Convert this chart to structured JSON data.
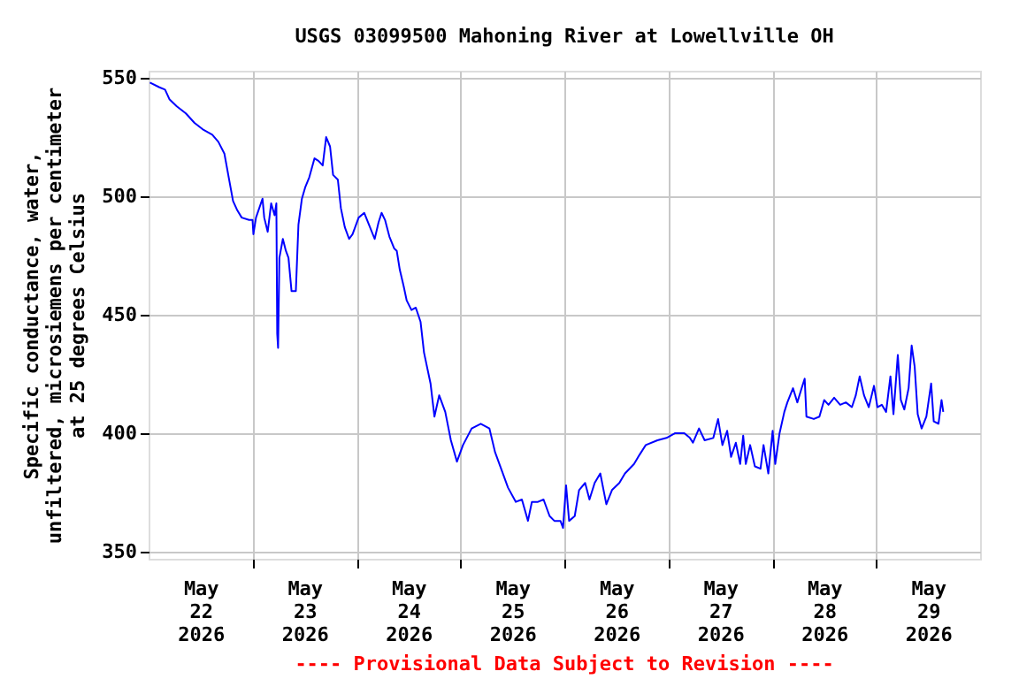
{
  "chart_data": {
    "type": "line",
    "title": "USGS 03099500 Mahoning River at Lowellville OH",
    "ylabel": "Specific conductance, water,\nunfiltered, microsiemens per centimeter\nat 25 degrees Celsius",
    "annotations": [
      "---- Provisional Data Subject to Revision ----"
    ],
    "x": [
      "2026-05-22T00:18",
      "2026-05-22T02:30",
      "2026-05-22T03:48",
      "2026-05-22T04:48",
      "2026-05-22T06:30",
      "2026-05-22T08:36",
      "2026-05-22T10:36",
      "2026-05-22T12:42",
      "2026-05-22T14:42",
      "2026-05-22T16:06",
      "2026-05-22T17:30",
      "2026-05-22T18:30",
      "2026-05-22T19:30",
      "2026-05-22T20:30",
      "2026-05-22T21:30",
      "2026-05-22T23:12",
      "2026-05-23T00:00",
      "2026-05-23T00:12",
      "2026-05-23T00:48",
      "2026-05-23T02:18",
      "2026-05-23T02:42",
      "2026-05-23T03:30",
      "2026-05-23T04:18",
      "2026-05-23T05:06",
      "2026-05-23T05:30",
      "2026-05-23T05:42",
      "2026-05-23T05:54",
      "2026-05-23T06:12",
      "2026-05-23T07:00",
      "2026-05-23T07:42",
      "2026-05-23T08:18",
      "2026-05-23T09:00",
      "2026-05-23T10:00",
      "2026-05-23T10:36",
      "2026-05-23T11:24",
      "2026-05-23T12:12",
      "2026-05-23T13:06",
      "2026-05-23T14:18",
      "2026-05-23T15:12",
      "2026-05-23T16:12",
      "2026-05-23T17:00",
      "2026-05-23T17:54",
      "2026-05-23T18:36",
      "2026-05-23T19:42",
      "2026-05-23T20:24",
      "2026-05-23T21:18",
      "2026-05-23T22:18",
      "2026-05-23T23:06",
      "2026-05-24T00:30",
      "2026-05-24T01:48",
      "2026-05-24T04:12",
      "2026-05-24T05:06",
      "2026-05-24T05:48",
      "2026-05-24T06:36",
      "2026-05-24T07:36",
      "2026-05-24T08:42",
      "2026-05-24T09:18",
      "2026-05-24T10:00",
      "2026-05-24T10:54",
      "2026-05-24T11:36",
      "2026-05-24T12:42",
      "2026-05-24T13:42",
      "2026-05-24T14:48",
      "2026-05-24T15:36",
      "2026-05-24T17:06",
      "2026-05-24T18:00",
      "2026-05-24T19:06",
      "2026-05-24T20:30",
      "2026-05-24T21:48",
      "2026-05-24T23:12",
      "2026-05-25T00:36",
      "2026-05-25T02:36",
      "2026-05-25T04:42",
      "2026-05-25T06:42",
      "2026-05-25T08:00",
      "2026-05-25T09:24",
      "2026-05-25T11:00",
      "2026-05-25T12:48",
      "2026-05-25T14:12",
      "2026-05-25T15:36",
      "2026-05-25T16:30",
      "2026-05-25T17:54",
      "2026-05-25T19:12",
      "2026-05-25T20:36",
      "2026-05-25T21:42",
      "2026-05-25T23:06",
      "2026-05-25T23:42",
      "2026-05-26T00:24",
      "2026-05-26T01:06",
      "2026-05-26T02:24",
      "2026-05-26T03:24",
      "2026-05-26T04:48",
      "2026-05-26T05:48",
      "2026-05-26T07:00",
      "2026-05-26T08:18",
      "2026-05-26T09:42",
      "2026-05-26T11:00",
      "2026-05-26T12:42",
      "2026-05-26T14:00",
      "2026-05-26T16:06",
      "2026-05-26T17:24",
      "2026-05-26T18:48",
      "2026-05-26T21:30",
      "2026-05-26T23:36",
      "2026-05-27T01:36",
      "2026-05-27T03:42",
      "2026-05-27T05:00",
      "2026-05-27T05:42",
      "2026-05-27T07:06",
      "2026-05-27T08:24",
      "2026-05-27T10:24",
      "2026-05-27T11:30",
      "2026-05-27T12:30",
      "2026-05-27T13:36",
      "2026-05-27T14:30",
      "2026-05-27T15:36",
      "2026-05-27T16:36",
      "2026-05-27T17:18",
      "2026-05-27T17:54",
      "2026-05-27T18:54",
      "2026-05-27T20:00",
      "2026-05-27T21:18",
      "2026-05-27T22:00",
      "2026-05-27T23:06",
      "2026-05-28T00:06",
      "2026-05-28T00:42",
      "2026-05-28T01:42",
      "2026-05-28T02:48",
      "2026-05-28T03:30",
      "2026-05-28T04:48",
      "2026-05-28T05:48",
      "2026-05-28T06:48",
      "2026-05-28T07:30",
      "2026-05-28T07:54",
      "2026-05-28T09:36",
      "2026-05-28T10:54",
      "2026-05-28T12:00",
      "2026-05-28T13:00",
      "2026-05-28T14:18",
      "2026-05-28T15:42",
      "2026-05-28T17:00",
      "2026-05-28T18:24",
      "2026-05-28T19:18",
      "2026-05-28T20:12",
      "2026-05-28T21:12",
      "2026-05-28T22:18",
      "2026-05-28T23:30",
      "2026-05-29T00:18",
      "2026-05-29T01:18",
      "2026-05-29T02:18",
      "2026-05-29T03:18",
      "2026-05-29T04:00",
      "2026-05-29T05:00",
      "2026-05-29T05:42",
      "2026-05-29T06:30",
      "2026-05-29T07:30",
      "2026-05-29T08:12",
      "2026-05-29T08:54",
      "2026-05-29T09:36",
      "2026-05-29T10:30",
      "2026-05-29T11:36",
      "2026-05-29T12:42",
      "2026-05-29T13:18",
      "2026-05-29T14:24",
      "2026-05-29T15:06",
      "2026-05-29T15:30"
    ],
    "series": [
      {
        "color": "#0000ff",
        "values": [
          548,
          546,
          545,
          541,
          538,
          535,
          531,
          528,
          526,
          523,
          518,
          508,
          498,
          494,
          491,
          490,
          490,
          484,
          491,
          499,
          491,
          485,
          497,
          492,
          497,
          442,
          436,
          474,
          482,
          477,
          474,
          460,
          460,
          488,
          499,
          504,
          508,
          516,
          515,
          513,
          525,
          521,
          509,
          507,
          495,
          487,
          482,
          484,
          491,
          493,
          482,
          489,
          493,
          490,
          483,
          478,
          477,
          469,
          462,
          456,
          452,
          453,
          447,
          434,
          421,
          407,
          416,
          409,
          397,
          388,
          395,
          402,
          404,
          402,
          392,
          385,
          377,
          371,
          372,
          363,
          371,
          371,
          372,
          365,
          363,
          363,
          360,
          378,
          363,
          365,
          376,
          379,
          372,
          379,
          383,
          370,
          376,
          379,
          383,
          387,
          391,
          395,
          397,
          398,
          400,
          400,
          398,
          396,
          402,
          397,
          398,
          406,
          395,
          401,
          390,
          396,
          387,
          399,
          387,
          395,
          386,
          385,
          395,
          383,
          401,
          387,
          400,
          409,
          413,
          419,
          413,
          419,
          423,
          407,
          406,
          407,
          414,
          412,
          415,
          412,
          413,
          411,
          416,
          424,
          416,
          411,
          420,
          411,
          412,
          409,
          424,
          408,
          433,
          414,
          410,
          419,
          437,
          428,
          408,
          402,
          407,
          421,
          405,
          404,
          414,
          409
        ]
      }
    ],
    "xlim": [
      "2026-05-22T00:00",
      "2026-05-30T00:00"
    ],
    "xticks": [
      {
        "value": "2026-05-22T12:00",
        "label": "May 22 2026"
      },
      {
        "value": "2026-05-23T12:00",
        "label": "May 23 2026"
      },
      {
        "value": "2026-05-24T12:00",
        "label": "May 24 2026"
      },
      {
        "value": "2026-05-25T12:00",
        "label": "May 25 2026"
      },
      {
        "value": "2026-05-26T12:00",
        "label": "May 26 2026"
      },
      {
        "value": "2026-05-27T12:00",
        "label": "May 27 2026"
      },
      {
        "value": "2026-05-28T12:00",
        "label": "May 28 2026"
      },
      {
        "value": "2026-05-29T12:00",
        "label": "May 29 2026"
      },
      {
        "value": "2026-05-23T00:00",
        "label": null
      },
      {
        "value": "2026-05-24T00:00",
        "label": null
      },
      {
        "value": "2026-05-25T00:00",
        "label": null
      },
      {
        "value": "2026-05-26T00:00",
        "label": null
      },
      {
        "value": "2026-05-27T00:00",
        "label": null
      },
      {
        "value": "2026-05-28T00:00",
        "label": null
      },
      {
        "value": "2026-05-29T00:00",
        "label": null
      }
    ],
    "ylim": [
      347,
      553
    ],
    "yticks": [
      350,
      400,
      450,
      500,
      550
    ],
    "grid": true
  }
}
